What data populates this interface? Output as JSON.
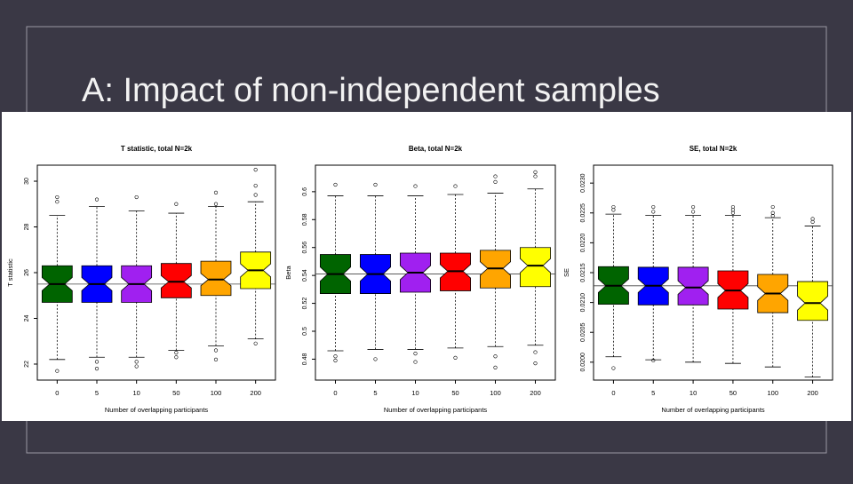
{
  "title": "A: Impact of non-independent samples",
  "chart_data": [
    {
      "type": "box",
      "title": "T statistic, total N=2k",
      "xlabel": "Number of overlapping participants",
      "ylabel": "T statistic",
      "categories": [
        "0",
        "5",
        "10",
        "50",
        "100",
        "200"
      ],
      "colors": [
        "#006400",
        "#0000ff",
        "#a020f0",
        "#ff0000",
        "#ffa500",
        "#ffff00"
      ],
      "boxes": [
        {
          "whislo": 22.2,
          "q1": 24.7,
          "med": 25.5,
          "q3": 26.3,
          "whishi": 28.5,
          "fliers": [
            21.7,
            29.3,
            29.1
          ]
        },
        {
          "whislo": 22.3,
          "q1": 24.7,
          "med": 25.5,
          "q3": 26.3,
          "whishi": 28.9,
          "fliers": [
            21.8,
            22.1,
            29.2
          ]
        },
        {
          "whislo": 22.3,
          "q1": 24.7,
          "med": 25.5,
          "q3": 26.3,
          "whishi": 28.7,
          "fliers": [
            21.9,
            22.1,
            29.3
          ]
        },
        {
          "whislo": 22.6,
          "q1": 24.9,
          "med": 25.6,
          "q3": 26.4,
          "whishi": 28.6,
          "fliers": [
            22.3,
            22.5,
            29.0
          ]
        },
        {
          "whislo": 22.8,
          "q1": 25.0,
          "med": 25.7,
          "q3": 26.5,
          "whishi": 28.9,
          "fliers": [
            22.2,
            22.6,
            29.5,
            29.0
          ]
        },
        {
          "whislo": 23.1,
          "q1": 25.3,
          "med": 26.1,
          "q3": 26.9,
          "whishi": 29.1,
          "fliers": [
            30.5,
            29.8,
            29.4,
            22.9
          ]
        }
      ],
      "hline": 25.5,
      "ylim": [
        21.3,
        30.7
      ],
      "yticks": [
        22,
        24,
        26,
        28,
        30
      ]
    },
    {
      "type": "box",
      "title": "Beta, total N=2k",
      "xlabel": "Number of overlapping participants",
      "ylabel": "Beta",
      "categories": [
        "0",
        "5",
        "10",
        "50",
        "100",
        "200"
      ],
      "colors": [
        "#006400",
        "#0000ff",
        "#a020f0",
        "#ff0000",
        "#ffa500",
        "#ffff00"
      ],
      "boxes": [
        {
          "whislo": 0.486,
          "q1": 0.527,
          "med": 0.541,
          "q3": 0.555,
          "whishi": 0.597,
          "fliers": [
            0.482,
            0.479,
            0.605
          ]
        },
        {
          "whislo": 0.487,
          "q1": 0.527,
          "med": 0.541,
          "q3": 0.555,
          "whishi": 0.597,
          "fliers": [
            0.48,
            0.605
          ]
        },
        {
          "whislo": 0.487,
          "q1": 0.528,
          "med": 0.542,
          "q3": 0.556,
          "whishi": 0.597,
          "fliers": [
            0.478,
            0.484,
            0.604
          ]
        },
        {
          "whislo": 0.488,
          "q1": 0.529,
          "med": 0.543,
          "q3": 0.556,
          "whishi": 0.598,
          "fliers": [
            0.481,
            0.604
          ]
        },
        {
          "whislo": 0.489,
          "q1": 0.531,
          "med": 0.545,
          "q3": 0.558,
          "whishi": 0.599,
          "fliers": [
            0.474,
            0.482,
            0.611,
            0.607
          ]
        },
        {
          "whislo": 0.49,
          "q1": 0.532,
          "med": 0.547,
          "q3": 0.56,
          "whishi": 0.602,
          "fliers": [
            0.477,
            0.485,
            0.614,
            0.611
          ]
        }
      ],
      "hline": 0.541,
      "ylim": [
        0.465,
        0.619
      ],
      "yticks": [
        0.48,
        0.5,
        0.52,
        0.54,
        0.56,
        0.58,
        0.6
      ]
    },
    {
      "type": "box",
      "title": "SE, total N=2k",
      "xlabel": "Number of overlapping participants",
      "ylabel": "SE",
      "categories": [
        "0",
        "5",
        "10",
        "50",
        "100",
        "200"
      ],
      "colors": [
        "#006400",
        "#0000ff",
        "#a020f0",
        "#ff0000",
        "#ffa500",
        "#ffff00"
      ],
      "boxes": [
        {
          "whislo": 0.02009,
          "q1": 0.02097,
          "med": 0.02128,
          "q3": 0.0216,
          "whishi": 0.02248,
          "fliers": [
            0.0199,
            0.0226,
            0.02255
          ]
        },
        {
          "whislo": 0.02004,
          "q1": 0.02096,
          "med": 0.02128,
          "q3": 0.02159,
          "whishi": 0.02246,
          "fliers": [
            0.02003,
            0.0226,
            0.02252
          ]
        },
        {
          "whislo": 0.02,
          "q1": 0.02096,
          "med": 0.02125,
          "q3": 0.02159,
          "whishi": 0.02246,
          "fliers": [
            0.0226,
            0.02252
          ]
        },
        {
          "whislo": 0.01998,
          "q1": 0.02089,
          "med": 0.0212,
          "q3": 0.02153,
          "whishi": 0.02246,
          "fliers": [
            0.0226,
            0.02255,
            0.0225
          ]
        },
        {
          "whislo": 0.01992,
          "q1": 0.02083,
          "med": 0.02115,
          "q3": 0.02147,
          "whishi": 0.02242,
          "fliers": [
            0.0226,
            0.0225,
            0.02245
          ]
        },
        {
          "whislo": 0.01975,
          "q1": 0.0207,
          "med": 0.02099,
          "q3": 0.02135,
          "whishi": 0.02228,
          "fliers": [
            0.0224,
            0.02235
          ]
        }
      ],
      "hline": 0.02128,
      "ylim": [
        0.0197,
        0.0233
      ],
      "yticks": [
        {
          "value": 0.02,
          "label": "0.0200"
        },
        {
          "value": 0.0205,
          "label": "0.0205"
        },
        {
          "value": 0.021,
          "label": "0.0210"
        },
        {
          "value": 0.0215,
          "label": "0.0215"
        },
        {
          "value": 0.022,
          "label": "0.0220"
        },
        {
          "value": 0.0225,
          "label": "0.0225"
        },
        {
          "value": 0.023,
          "label": "0.0230"
        }
      ]
    }
  ]
}
